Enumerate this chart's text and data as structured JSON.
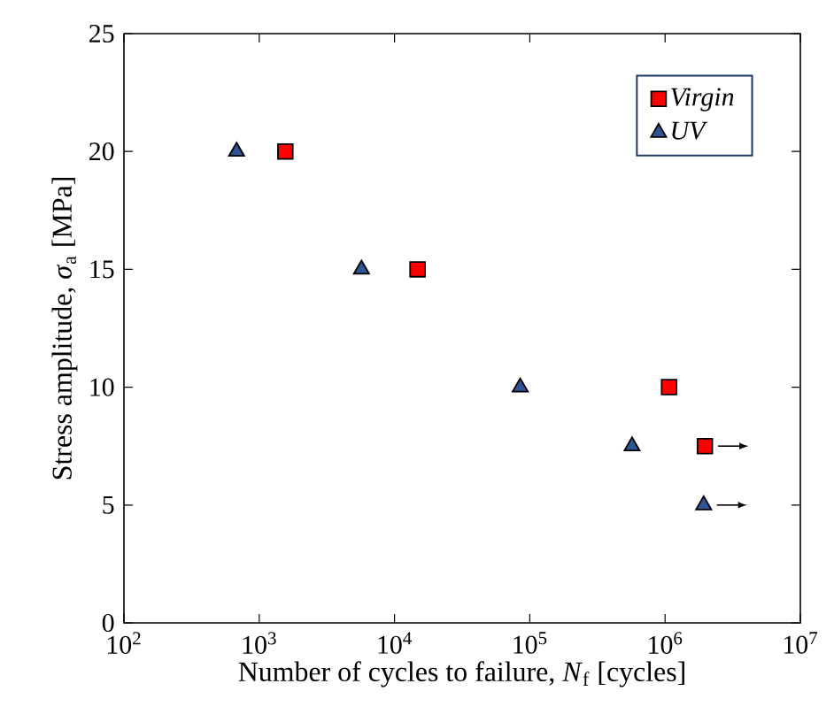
{
  "chart_data": {
    "type": "scatter",
    "xlabel": "Number of cycles to failure, *N*$_{f}$ [cycles]",
    "ylabel": "Stress amplitude, *σ*$_{a}$ [MPa]",
    "log": "x",
    "xlim": [
      100,
      10000000
    ],
    "xticks": [
      {
        "value": 100,
        "label": "10$^{2}$"
      },
      {
        "value": 1000,
        "label": "10$^{3}$"
      },
      {
        "value": 10000,
        "label": "10$^{4}$"
      },
      {
        "value": 100000,
        "label": "10$^{5}$"
      },
      {
        "value": 1000000,
        "label": "10$^{6}$"
      },
      {
        "value": 10000000,
        "label": "10$^{7}$"
      }
    ],
    "ylim": [
      0,
      25
    ],
    "yticks": [
      0,
      5,
      10,
      15,
      20,
      25
    ],
    "grid": false,
    "legend": "top right",
    "series": [
      {
        "name": "Virgin",
        "color": "#ff0000",
        "marker": "square",
        "x": [
          1560,
          14800,
          1070000,
          1970000
        ],
        "values": [
          20,
          15,
          10,
          7.5
        ]
      },
      {
        "name": "UV",
        "color": "#2f5597",
        "marker": "triangle",
        "x": [
          680,
          5700,
          85000,
          570000,
          1930000
        ],
        "values": [
          20,
          15,
          10,
          7.5,
          5
        ]
      }
    ]
  }
}
